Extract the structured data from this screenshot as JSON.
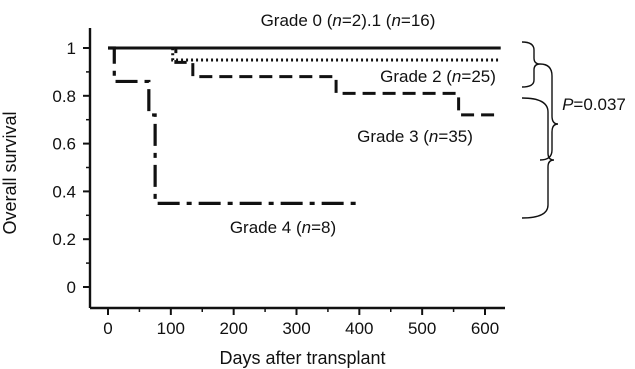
{
  "chart_data": {
    "type": "line",
    "subtype": "kaplan-meier step",
    "xlabel": "Days after transplant",
    "ylabel": "Overall survival",
    "xlim": [
      -30,
      630
    ],
    "ylim": [
      -0.08,
      1.1
    ],
    "x_ticks": [
      0,
      100,
      200,
      300,
      400,
      500,
      600
    ],
    "x_tick_labels": [
      "0",
      "100",
      "200",
      "300",
      "400",
      "500",
      "600"
    ],
    "y_ticks": [
      0,
      0.2,
      0.4,
      0.6,
      0.8,
      1
    ],
    "y_tick_labels": [
      "0",
      "0.2",
      "0.4",
      "0.6",
      "0.8",
      "1"
    ],
    "grid": false,
    "series": [
      {
        "label_parts": [
          [
            "Grade 0 (",
            false
          ],
          [
            "n",
            true
          ],
          [
            "=2).1 (",
            false
          ],
          [
            "n",
            true
          ],
          [
            "=16)",
            false
          ]
        ],
        "style": "solid",
        "x": [
          0,
          625
        ],
        "y": [
          1.0,
          1.0
        ]
      },
      {
        "label_parts": [
          [
            "Grade 2 (",
            false
          ],
          [
            "n",
            true
          ],
          [
            "=25)",
            false
          ]
        ],
        "style": "dotted",
        "x": [
          0,
          103,
          625
        ],
        "y": [
          1.0,
          0.95,
          0.95
        ]
      },
      {
        "label_parts": [
          [
            "Grade 3 (",
            false
          ],
          [
            "n",
            true
          ],
          [
            "=35)",
            false
          ]
        ],
        "style": "dashed",
        "x": [
          0,
          108,
          135,
          363,
          558,
          625
        ],
        "y": [
          1.0,
          0.94,
          0.88,
          0.81,
          0.72,
          0.72
        ]
      },
      {
        "label_parts": [
          [
            "Grade 4 (",
            false
          ],
          [
            "n",
            true
          ],
          [
            "=8)",
            false
          ]
        ],
        "style": "dashdot",
        "x": [
          0,
          10,
          65,
          75,
          400
        ],
        "y": [
          1.0,
          0.86,
          0.72,
          0.35,
          0.35
        ]
      }
    ],
    "annotations": [
      {
        "text_parts": [
          [
            "P",
            true
          ],
          [
            "=0.037",
            false
          ]
        ],
        "brackets": [
          "Grade 0/1 vs Grade 2",
          "Grade 3 vs Grade 4"
        ]
      }
    ]
  }
}
